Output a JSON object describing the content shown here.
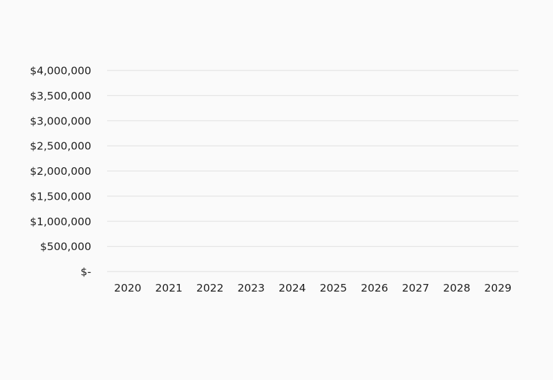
{
  "chart_data": {
    "type": "line",
    "title": "",
    "xlabel": "",
    "ylabel": "",
    "categories": [
      "2020",
      "2021",
      "2022",
      "2023",
      "2024",
      "2025",
      "2026",
      "2027",
      "2028",
      "2029"
    ],
    "series": [],
    "ylim": [
      0,
      4000000
    ],
    "y_ticks": [
      {
        "value": 0,
        "label": "$-"
      },
      {
        "value": 500000,
        "label": "$500,000"
      },
      {
        "value": 1000000,
        "label": "$1,000,000"
      },
      {
        "value": 1500000,
        "label": "$1,500,000"
      },
      {
        "value": 2000000,
        "label": "$2,000,000"
      },
      {
        "value": 2500000,
        "label": "$2,500,000"
      },
      {
        "value": 3000000,
        "label": "$3,000,000"
      },
      {
        "value": 3500000,
        "label": "$3,500,000"
      },
      {
        "value": 4000000,
        "label": "$4,000,000"
      }
    ],
    "grid": true,
    "legend": "none",
    "colors": {
      "background": "#fafafa",
      "gridline": "#e4e4e4",
      "text": "#1e1e1e"
    }
  }
}
